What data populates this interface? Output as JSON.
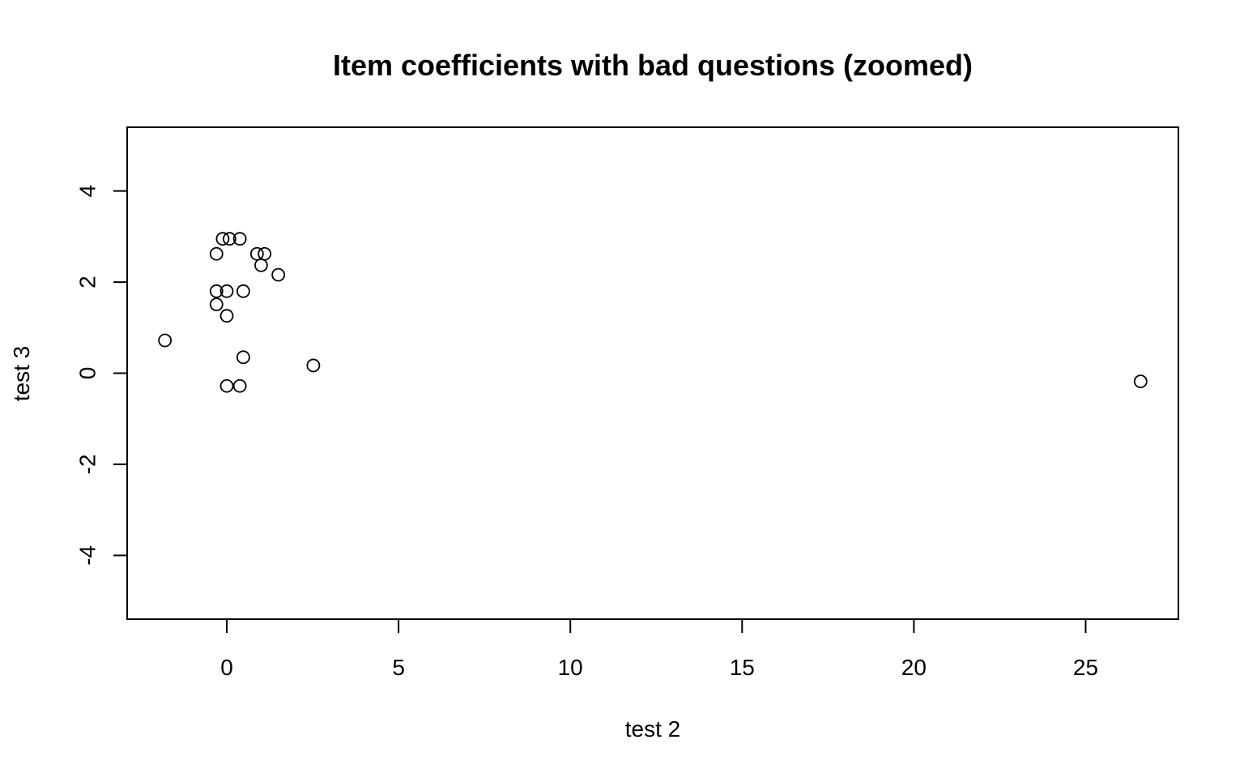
{
  "chart_data": {
    "type": "scatter",
    "title": "Item coefficients with bad questions (zoomed)",
    "xlabel": "test 2",
    "ylabel": "test 3",
    "xlim": [
      -2.9,
      27.7
    ],
    "ylim": [
      -5.4,
      5.4
    ],
    "x_ticks": [
      0,
      5,
      10,
      15,
      20,
      25
    ],
    "x_tick_labels": [
      "0",
      "5",
      "10",
      "15",
      "20",
      "25"
    ],
    "y_ticks": [
      -4,
      -2,
      0,
      2,
      4
    ],
    "y_tick_labels": [
      "-4",
      "-2",
      "0",
      "2",
      "4"
    ],
    "grid": false,
    "marker": "open-circle",
    "color": "#000000",
    "series": [
      {
        "points": [
          [
            -0.12,
            2.95
          ],
          [
            0.08,
            2.95
          ],
          [
            0.38,
            2.95
          ],
          [
            -0.3,
            2.62
          ],
          [
            0.88,
            2.62
          ],
          [
            1.1,
            2.62
          ],
          [
            1.0,
            2.37
          ],
          [
            1.5,
            2.16
          ],
          [
            -0.3,
            1.8
          ],
          [
            0.0,
            1.8
          ],
          [
            0.48,
            1.8
          ],
          [
            -0.3,
            1.51
          ],
          [
            0.0,
            1.26
          ],
          [
            -1.8,
            0.72
          ],
          [
            0.48,
            0.35
          ],
          [
            2.52,
            0.17
          ],
          [
            0.0,
            -0.28
          ],
          [
            0.38,
            -0.28
          ],
          [
            26.6,
            -0.18
          ]
        ]
      }
    ]
  }
}
